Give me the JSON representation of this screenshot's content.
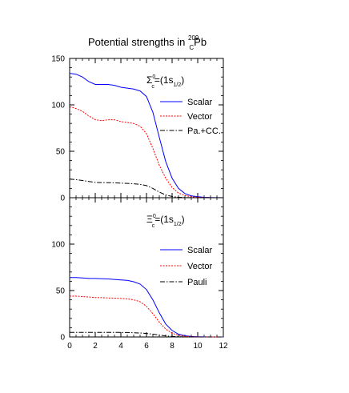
{
  "title": {
    "prefix": "Potential strengths in ",
    "mass_number": "209",
    "subscript": "C",
    "element": "Pb"
  },
  "chart_data": [
    {
      "type": "line",
      "panel": "top",
      "label": {
        "symbol": "Σ",
        "superscript": "0",
        "subscript": "c",
        "equals": "=(1s",
        "state_subscript": "1/2",
        "close": ")"
      },
      "xlim": [
        0,
        12
      ],
      "ylim": [
        0,
        150
      ],
      "yticks": [
        0,
        50,
        100,
        150
      ],
      "yticklabels": [
        "0",
        "50",
        "100",
        "150"
      ],
      "grid": false,
      "legend_position": "right",
      "series": [
        {
          "name": "Scalar",
          "color": "#0000ff",
          "dash": "solid",
          "x": [
            0,
            0.5,
            1,
            1.5,
            2,
            2.5,
            3,
            3.5,
            4,
            4.5,
            5,
            5.5,
            6,
            6.5,
            7,
            7.5,
            8,
            8.5,
            9,
            9.5,
            10,
            10.5,
            11,
            11.5,
            12
          ],
          "y": [
            134,
            133,
            130,
            125,
            122,
            122,
            122,
            121,
            119,
            118,
            117,
            115,
            109,
            92,
            65,
            39,
            21,
            10,
            4.5,
            2,
            1,
            0.4,
            0.2,
            0.1,
            0
          ]
        },
        {
          "name": "Vector",
          "color": "#ff0000",
          "dash": "dotted",
          "x": [
            0,
            0.5,
            1,
            1.5,
            2,
            2.5,
            3,
            3.5,
            4,
            4.5,
            5,
            5.5,
            6,
            6.5,
            7,
            7.5,
            8,
            8.5,
            9,
            9.5,
            10,
            10.5,
            11,
            11.5,
            12
          ],
          "y": [
            98,
            96,
            93,
            88,
            84,
            83,
            84,
            84,
            82,
            81,
            80,
            77,
            69,
            53,
            35,
            21,
            11,
            5,
            2.3,
            1,
            0.5,
            0.2,
            0.1,
            0,
            0
          ]
        },
        {
          "name": "Pa.+CC.",
          "color": "#000000",
          "dash": "dashdot",
          "x": [
            0,
            0.5,
            1,
            1.5,
            2,
            2.5,
            3,
            3.5,
            4,
            4.5,
            5,
            5.5,
            6,
            6.5,
            7,
            7.5,
            8,
            8.5,
            9,
            9.5,
            10,
            10.5,
            11,
            11.5,
            12
          ],
          "y": [
            20,
            19.5,
            18.5,
            17.5,
            16.5,
            16.3,
            16.2,
            16,
            15.7,
            15.4,
            15,
            14.4,
            13,
            10,
            6,
            3,
            1.3,
            0.5,
            0.2,
            0.1,
            0,
            0,
            0,
            0,
            0
          ]
        }
      ]
    },
    {
      "type": "line",
      "panel": "bottom",
      "label": {
        "symbol": "Ξ",
        "superscript": "0",
        "subscript": "c",
        "equals": "=(1s",
        "state_subscript": "1/2",
        "close": ")"
      },
      "xlim": [
        0,
        12
      ],
      "ylim": [
        0,
        150
      ],
      "xticks": [
        0,
        2,
        4,
        6,
        8,
        10,
        12
      ],
      "xticklabels": [
        "0",
        "2",
        "4",
        "6",
        "8",
        "10",
        "12"
      ],
      "yticks": [
        0,
        50,
        100
      ],
      "yticklabels": [
        "0",
        "50",
        "100"
      ],
      "grid": false,
      "legend_position": "right",
      "series": [
        {
          "name": "Scalar",
          "color": "#0000ff",
          "dash": "solid",
          "x": [
            0,
            0.5,
            1,
            1.5,
            2,
            2.5,
            3,
            3.5,
            4,
            4.5,
            5,
            5.5,
            6,
            6.5,
            7,
            7.5,
            8,
            8.5,
            9,
            9.5,
            10,
            10.5,
            11,
            11.5,
            12
          ],
          "y": [
            64,
            64,
            63.5,
            63,
            63,
            62.8,
            62.5,
            62,
            61.5,
            61,
            59.5,
            57,
            51,
            40,
            26,
            14,
            7,
            3,
            1.3,
            0.5,
            0.2,
            0.1,
            0,
            0,
            0
          ]
        },
        {
          "name": "Vector",
          "color": "#ff0000",
          "dash": "dotted",
          "x": [
            0,
            0.5,
            1,
            1.5,
            2,
            2.5,
            3,
            3.5,
            4,
            4.5,
            5,
            5.5,
            6,
            6.5,
            7,
            7.5,
            8,
            8.5,
            9,
            9.5,
            10,
            10.5,
            11,
            11.5,
            12
          ],
          "y": [
            44,
            44,
            43.5,
            43,
            42.5,
            42.3,
            42,
            41.8,
            41.5,
            41,
            40,
            38,
            33,
            25,
            16,
            8.5,
            4,
            1.8,
            0.7,
            0.3,
            0.1,
            0,
            0,
            0,
            0
          ]
        },
        {
          "name": "Pauli",
          "color": "#000000",
          "dash": "dashdot",
          "x": [
            0,
            0.5,
            1,
            1.5,
            2,
            2.5,
            3,
            3.5,
            4,
            4.5,
            5,
            5.5,
            6,
            6.5,
            7,
            7.5,
            8,
            8.5,
            9,
            9.5,
            10,
            10.5,
            11,
            11.5,
            12
          ],
          "y": [
            5,
            5,
            5,
            5,
            5,
            5,
            5,
            5,
            4.9,
            4.8,
            4.6,
            4.3,
            3.8,
            3,
            2,
            1.2,
            0.6,
            0.3,
            0.1,
            0,
            0,
            0,
            0,
            0,
            0
          ]
        }
      ]
    }
  ]
}
